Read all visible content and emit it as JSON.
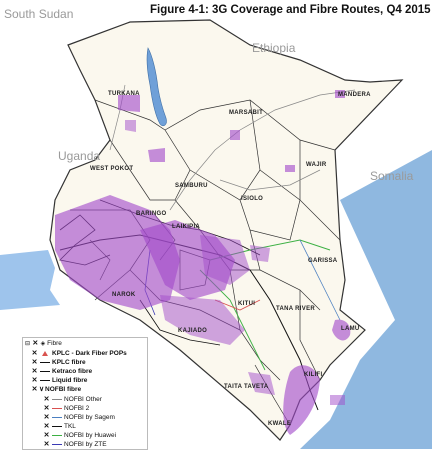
{
  "title": "Figure 4-1: 3G Coverage and Fibre Routes, Q4 2015",
  "countries": {
    "south_sudan": "South Sudan",
    "ethiopia": "Ethiopia",
    "uganda": "Uganda",
    "somalia": "Somalia"
  },
  "counties": {
    "turkana": "TURKANA",
    "marsabit": "MARSABIT",
    "mandera": "MANDERA",
    "wajir": "WAJIR",
    "west_pokot": "WEST POKOT",
    "samburu": "SAMBURU",
    "isiolo": "ISIOLO",
    "baringo": "BARINGO",
    "laikipia": "LAIKIPIA",
    "garissa": "GARISSA",
    "narok": "NAROK",
    "kitui": "KITUI",
    "tana_river": "TANA RIVER",
    "kajiado": "KAJIADO",
    "lamu": "LAMU",
    "kilifi": "KILIFI",
    "taita_taveta": "TAITA TAVETA",
    "kwale": "KWALE"
  },
  "legend": {
    "header": "Fibre",
    "items": [
      {
        "label": "KPLC - Dark Fiber POPs",
        "bold": true,
        "color": "#d9534f",
        "type": "triangle"
      },
      {
        "label": "KPLC fibre",
        "bold": true,
        "color": "#111111",
        "type": "line"
      },
      {
        "label": "Ketraco fibre",
        "bold": true,
        "color": "#111111",
        "type": "line"
      },
      {
        "label": "Liquid fibre",
        "bold": true,
        "color": "#111111",
        "type": "line"
      },
      {
        "label": "NOFBI fibre",
        "bold": true,
        "color": "#111111",
        "type": "group"
      },
      {
        "label": "NOFBI Other",
        "bold": false,
        "color": "#888888",
        "type": "line"
      },
      {
        "label": "NOFBI 2",
        "bold": false,
        "color": "#d94f4f",
        "type": "line"
      },
      {
        "label": "NOFBI by Sagem",
        "bold": false,
        "color": "#4a7fc1",
        "type": "line"
      },
      {
        "label": "TKL",
        "bold": false,
        "color": "#111111",
        "type": "line"
      },
      {
        "label": "NOFBI by Huawei",
        "bold": false,
        "color": "#3cb043",
        "type": "line"
      },
      {
        "label": "NOFBI by ZTE",
        "bold": false,
        "color": "#3a3ab5",
        "type": "line"
      }
    ]
  },
  "colors": {
    "coverage": "#a24bc9",
    "land": "#fbf8ee",
    "lake": "#6fa0d8",
    "ocean": "#8fb8e0",
    "border": "#333333"
  }
}
